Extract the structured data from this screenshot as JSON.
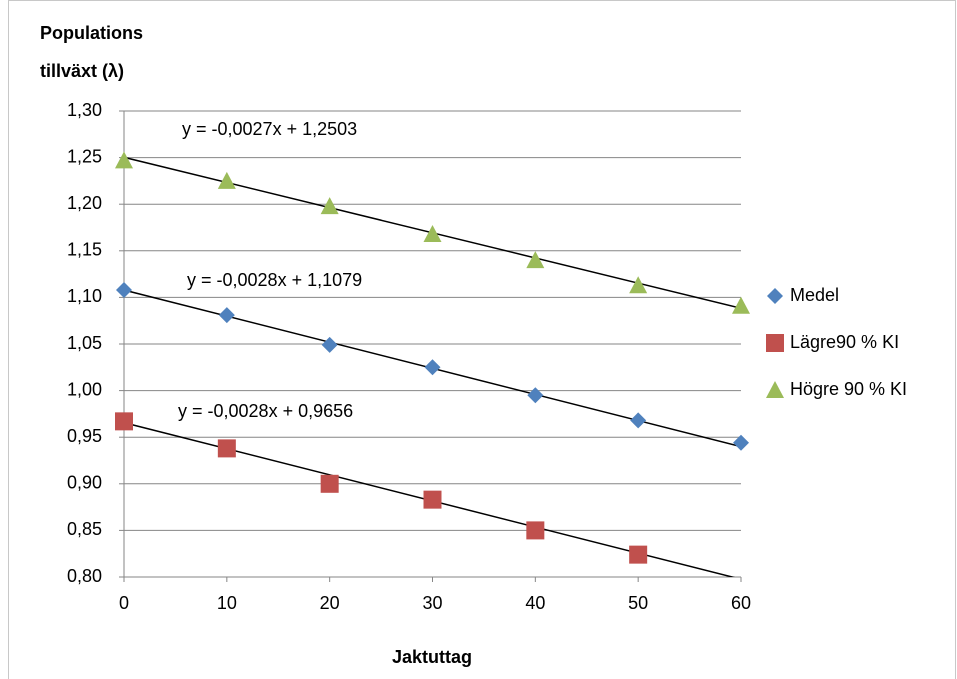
{
  "chart_data": {
    "type": "scatter",
    "y_label": [
      "Populations",
      "tillväxt (λ)"
    ],
    "x_label": "Jaktuttag",
    "x": [
      0,
      10,
      20,
      30,
      40,
      50,
      60
    ],
    "xlim": [
      0,
      60
    ],
    "xticks": [
      0,
      10,
      20,
      30,
      40,
      50,
      60
    ],
    "ylim": [
      0.8,
      1.3
    ],
    "yticks": [
      {
        "value": 0.8,
        "label": "0,80"
      },
      {
        "value": 0.85,
        "label": "0,85"
      },
      {
        "value": 0.9,
        "label": "0,90"
      },
      {
        "value": 0.95,
        "label": "0,95"
      },
      {
        "value": 1.0,
        "label": "1,00"
      },
      {
        "value": 1.05,
        "label": "1,05"
      },
      {
        "value": 1.1,
        "label": "1,10"
      },
      {
        "value": 1.15,
        "label": "1,15"
      },
      {
        "value": 1.2,
        "label": "1,20"
      },
      {
        "value": 1.25,
        "label": "1,25"
      },
      {
        "value": 1.3,
        "label": "1,30"
      }
    ],
    "grid": true,
    "legend": "right",
    "series": [
      {
        "name": "Medel",
        "color": "#4f81bd",
        "marker": "diamond",
        "values": [
          1.108,
          1.081,
          1.049,
          1.025,
          0.995,
          0.968,
          0.944
        ],
        "trendline": {
          "label": "y = -0,0028x + 1,1079",
          "slope": -0.0028,
          "intercept": 1.1079
        }
      },
      {
        "name": "Lägre90 % KI",
        "color": "#c0504d",
        "marker": "square",
        "values": [
          0.967,
          0.938,
          0.9,
          0.883,
          0.85,
          0.824,
          null
        ],
        "trendline": {
          "label": "y = -0,0028x + 0,9656",
          "slope": -0.0028,
          "intercept": 0.9656
        }
      },
      {
        "name": "Högre 90 % KI",
        "color": "#9bbb59",
        "marker": "triangle",
        "values": [
          1.247,
          1.225,
          1.198,
          1.168,
          1.14,
          1.113,
          1.091
        ],
        "trendline": {
          "label": "y = -0,0027x + 1,2503",
          "slope": -0.0027,
          "intercept": 1.2503
        }
      }
    ]
  }
}
